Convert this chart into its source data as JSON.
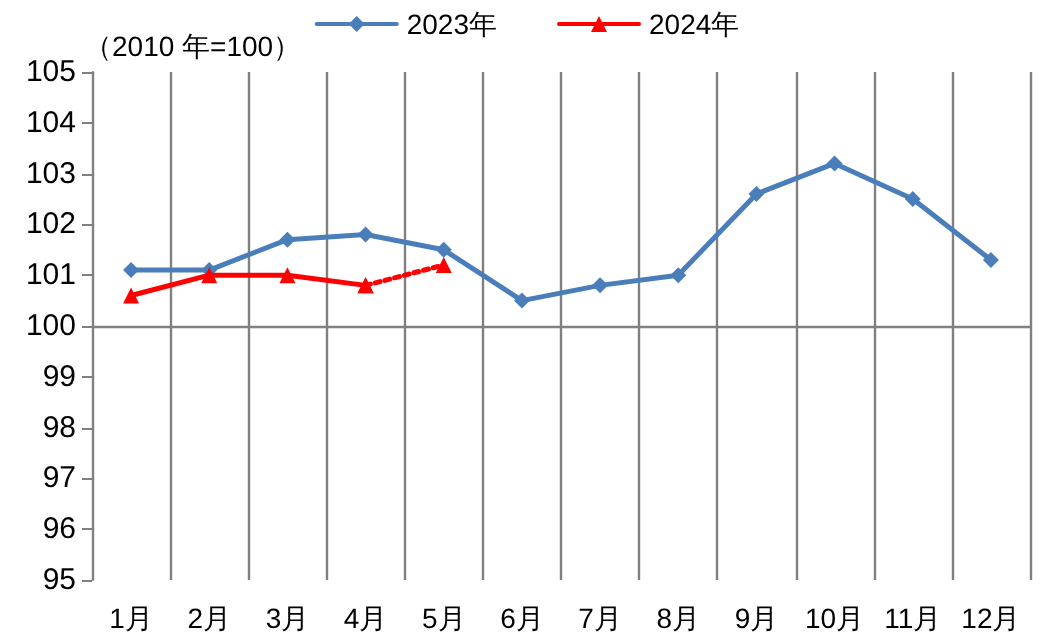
{
  "chart_data": {
    "type": "line",
    "ylabel": "（2010 年=100）",
    "categories": [
      "1月",
      "2月",
      "3月",
      "4月",
      "5月",
      "6月",
      "7月",
      "8月",
      "9月",
      "10月",
      "11月",
      "12月"
    ],
    "series": [
      {
        "name": "2023年",
        "color": "#4a7ebb",
        "marker": "diamond",
        "line_style": "solid",
        "values": [
          101.1,
          101.1,
          101.7,
          101.8,
          101.5,
          100.5,
          100.8,
          101.0,
          102.6,
          103.2,
          102.5,
          101.3
        ]
      },
      {
        "name": "2024年",
        "color": "#ff0000",
        "marker": "triangle",
        "line_style": "solid",
        "values": [
          100.6,
          101.0,
          101.0,
          100.8,
          null,
          null,
          null,
          null,
          null,
          null,
          null,
          null
        ]
      },
      {
        "color": "#ff0000",
        "marker": "triangle",
        "line_style": "dotted",
        "values": [
          null,
          null,
          null,
          100.8,
          101.2,
          null,
          null,
          null,
          null,
          null,
          null,
          null
        ]
      }
    ],
    "ylim": [
      95,
      105
    ],
    "yticks": [
      95,
      96,
      97,
      98,
      99,
      100,
      101,
      102,
      103,
      104,
      105
    ],
    "grid": "x",
    "legend": "top",
    "ref_lines": [
      {
        "axis": "y",
        "value": 100,
        "color": "#808080"
      }
    ]
  }
}
